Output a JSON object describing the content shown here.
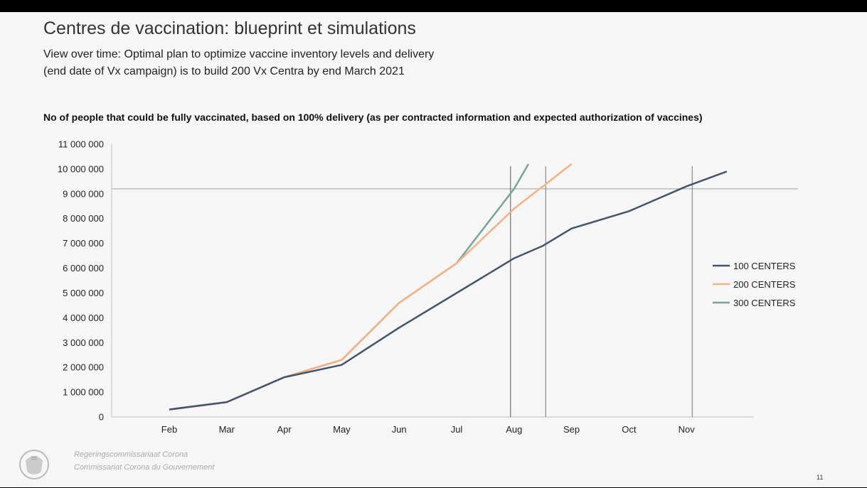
{
  "slide": {
    "title": "Centres de vaccination: blueprint et simulations",
    "subtitle_line1": "View over time: Optimal plan to optimize vaccine inventory levels and delivery",
    "subtitle_line2": "(end date of Vx campaign) is to build 200 Vx Centra by end March 2021",
    "footer_line1": "Regeringscommissariaat Corona",
    "footer_line2": "Commissariat Corona du Gouvernement",
    "page_number": "11"
  },
  "colors": {
    "series_100": "#44546a",
    "series_200": "#f4b183",
    "series_300": "#76a59a",
    "reference": "#999999"
  },
  "chart_data": {
    "type": "line",
    "title": "No of people that could be fully vaccinated, based on 100% delivery (as per contracted information and expected authorization of vaccines)",
    "xlabel": "",
    "ylabel": "",
    "categories": [
      "Feb",
      "Mar",
      "Apr",
      "May",
      "Jun",
      "Jul",
      "Aug",
      "Sep",
      "Oct",
      "Nov"
    ],
    "y_ticks": [
      "0",
      "1 000 000",
      "2 000 000",
      "3 000 000",
      "4 000 000",
      "5 000 000",
      "6 000 000",
      "7 000 000",
      "8 000 000",
      "9 000 000",
      "10 000 000",
      "11 000 000"
    ],
    "ylim": [
      0,
      11000000
    ],
    "grid": false,
    "legend_position": "right",
    "reference_line": 9200000,
    "vertical_markers": [
      6.0,
      6.55,
      9.1
    ],
    "series": [
      {
        "name": "100 CENTERS",
        "points": [
          [
            0,
            300000
          ],
          [
            1,
            600000
          ],
          [
            2,
            1600000
          ],
          [
            3,
            2100000
          ],
          [
            4,
            3600000
          ],
          [
            5,
            5000000
          ],
          [
            6,
            6400000
          ],
          [
            6.5,
            6900000
          ],
          [
            7,
            7600000
          ],
          [
            8,
            8300000
          ],
          [
            9,
            9300000
          ],
          [
            9.7,
            9900000
          ]
        ]
      },
      {
        "name": "200 CENTERS",
        "points": [
          [
            0,
            300000
          ],
          [
            1,
            600000
          ],
          [
            2,
            1600000
          ],
          [
            3,
            2300000
          ],
          [
            4,
            4600000
          ],
          [
            5,
            6200000
          ],
          [
            6,
            8400000
          ],
          [
            7,
            10200000
          ]
        ]
      },
      {
        "name": "300 CENTERS",
        "points": [
          [
            0,
            300000
          ],
          [
            1,
            600000
          ],
          [
            2,
            1600000
          ],
          [
            3,
            2300000
          ],
          [
            4,
            4600000
          ],
          [
            5,
            6200000
          ],
          [
            6,
            9200000
          ],
          [
            6.25,
            10200000
          ]
        ]
      }
    ]
  }
}
